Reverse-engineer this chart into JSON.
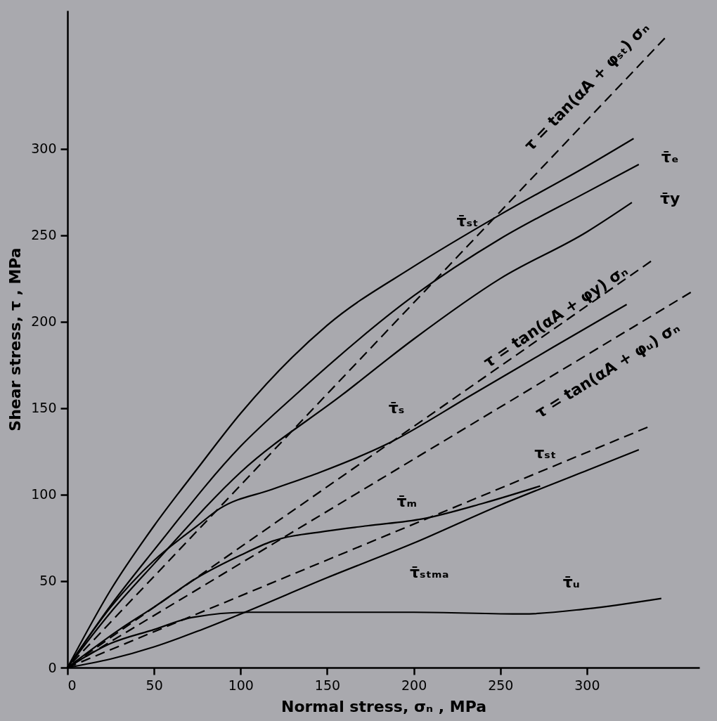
{
  "chart_data": {
    "type": "line",
    "xlabel": "Normal stress, σₙ , MPa",
    "ylabel": "Shear stress, τ , MPa",
    "xlim": [
      0,
      365
    ],
    "ylim": [
      0,
      380
    ],
    "xticks": [
      0,
      50,
      100,
      150,
      200,
      250,
      300
    ],
    "yticks": [
      0,
      50,
      100,
      150,
      200,
      250,
      300
    ],
    "grid": false,
    "legend": false,
    "marker": "none",
    "series": [
      {
        "color": "#000000",
        "line_style": "solid",
        "x": [
          0,
          25,
          50,
          75,
          100,
          150,
          200,
          250,
          300,
          327
        ],
        "values": [
          0,
          45,
          82,
          115,
          147,
          198,
          232,
          262,
          290,
          306
        ]
      },
      {
        "color": "#000000",
        "line_style": "solid",
        "x": [
          0,
          25,
          50,
          100,
          132,
          200,
          250,
          300,
          330
        ],
        "values": [
          0,
          36,
          68,
          128,
          158,
          215,
          248,
          275,
          291
        ]
      },
      {
        "color": "#000000",
        "line_style": "solid",
        "x": [
          0,
          25,
          50,
          100,
          159,
          200,
          250,
          300,
          326
        ],
        "values": [
          0,
          32,
          60,
          113,
          158,
          190,
          225,
          252,
          269
        ]
      },
      {
        "color": "#000000",
        "line_style": "solid",
        "x": [
          0,
          25,
          50,
          75,
          88,
          118,
          146,
          184,
          234,
          280,
          323
        ],
        "values": [
          0,
          35,
          62,
          82,
          92,
          103,
          113,
          129,
          158,
          185,
          210
        ]
      },
      {
        "color": "#000000",
        "line_style": "solid",
        "x": [
          0,
          30,
          50,
          75,
          100,
          118,
          150,
          173,
          205,
          240,
          273
        ],
        "values": [
          0,
          22,
          35,
          52,
          65,
          73,
          79,
          82,
          86,
          95,
          105
        ]
      },
      {
        "color": "#000000",
        "line_style": "solid",
        "x": [
          0,
          25,
          50,
          75,
          100,
          150,
          200,
          250,
          300,
          330
        ],
        "values": [
          0,
          5,
          12,
          21,
          31,
          52,
          72,
          94,
          114,
          126
        ]
      },
      {
        "color": "#000000",
        "line_style": "solid",
        "x": [
          0,
          25,
          50,
          72,
          105,
          159,
          200,
          263,
          300,
          343
        ],
        "values": [
          0,
          14,
          22,
          29,
          32,
          32,
          32,
          31,
          34,
          40
        ]
      },
      {
        "color": "#000000",
        "line_style": "dashed",
        "x": [
          0,
          345
        ],
        "values": [
          0,
          364
        ]
      },
      {
        "color": "#000000",
        "line_style": "dashed",
        "x": [
          0,
          337
        ],
        "values": [
          0,
          235
        ]
      },
      {
        "color": "#000000",
        "line_style": "dashed",
        "x": [
          0,
          360
        ],
        "values": [
          0,
          217
        ]
      },
      {
        "color": "#000000",
        "line_style": "dashed",
        "x": [
          0,
          335
        ],
        "values": [
          0,
          139
        ]
      }
    ],
    "annotations": [
      "τ = tan(αA + φₛₜ) σₙ",
      "τ̄ₛₜ",
      "τ̄ₑ",
      "τ̄y",
      "τ = tan(αA + φy) σₙ",
      "τ = tan(αA + φᵤ) σₙ",
      "τ̄ₛ",
      "τₛₜ",
      "τ̄ₘ",
      "τ̄ₛₜₘₐ",
      "τ̄ᵤ"
    ]
  }
}
